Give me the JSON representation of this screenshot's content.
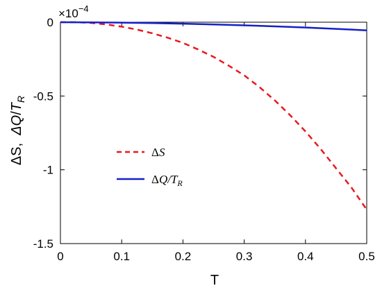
{
  "chart_data": {
    "type": "line",
    "xlabel": "T",
    "ylabel": "ΔS,  ΔQ/T_R",
    "y_multiplier": "×10^-4",
    "xlim": [
      0,
      0.5
    ],
    "ylim": [
      -1.5,
      0
    ],
    "x_ticks": [
      "0",
      "0.1",
      "0.2",
      "0.3",
      "0.4",
      "0.5"
    ],
    "y_ticks": [
      "0",
      "-0.5",
      "-1",
      "-1.5"
    ],
    "y_tick_values": [
      0,
      -0.5,
      -1,
      -1.5
    ],
    "x_tick_values": [
      0,
      0.1,
      0.2,
      0.3,
      0.4,
      0.5
    ],
    "legend_position": "center-left",
    "series": [
      {
        "name": "ΔS",
        "color": "#e8191f",
        "style": "dashed",
        "x": [
          0,
          0.025,
          0.05,
          0.075,
          0.1,
          0.125,
          0.15,
          0.175,
          0.2,
          0.225,
          0.25,
          0.275,
          0.3,
          0.325,
          0.35,
          0.375,
          0.4,
          0.425,
          0.45,
          0.475,
          0.5
        ],
        "values": [
          0,
          0,
          -0.005,
          -0.015,
          -0.03,
          -0.05,
          -0.075,
          -0.105,
          -0.14,
          -0.185,
          -0.235,
          -0.295,
          -0.36,
          -0.44,
          -0.53,
          -0.63,
          -0.74,
          -0.86,
          -0.99,
          -1.12,
          -1.27
        ]
      },
      {
        "name": "ΔQ/T_R",
        "color": "#1520c8",
        "style": "solid",
        "x": [
          0,
          0.05,
          0.1,
          0.15,
          0.2,
          0.25,
          0.3,
          0.35,
          0.4,
          0.45,
          0.5
        ],
        "values": [
          0,
          -0.001,
          -0.003,
          -0.006,
          -0.01,
          -0.015,
          -0.021,
          -0.028,
          -0.036,
          -0.045,
          -0.055
        ]
      }
    ]
  }
}
